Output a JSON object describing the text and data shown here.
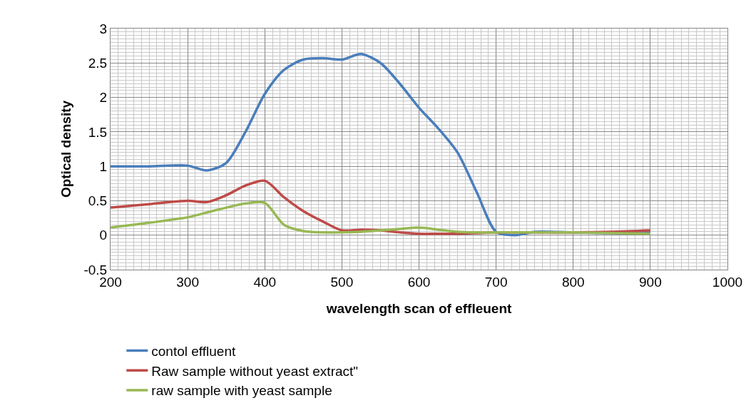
{
  "chart_data": {
    "type": "line",
    "xlabel": "wavelength scan of effleuent",
    "ylabel": "Optical density",
    "x": [
      200,
      250,
      300,
      325,
      350,
      375,
      400,
      425,
      450,
      475,
      500,
      525,
      550,
      575,
      600,
      625,
      650,
      675,
      700,
      725,
      750,
      800,
      850,
      900
    ],
    "series": [
      {
        "name": "contol effluent",
        "color": "#4a7ebb",
        "values": [
          1.0,
          1.0,
          1.01,
          0.94,
          1.05,
          1.5,
          2.05,
          2.4,
          2.55,
          2.57,
          2.55,
          2.63,
          2.5,
          2.2,
          1.85,
          1.55,
          1.2,
          0.62,
          0.05,
          0,
          0.05,
          0.04,
          0.03,
          0.03
        ]
      },
      {
        "name": "Raw sample without yeast extract\"",
        "color": "#be4b48",
        "values": [
          0.4,
          0.45,
          0.5,
          0.48,
          0.58,
          0.72,
          0.79,
          0.55,
          0.35,
          0.2,
          0.07,
          0.08,
          0.07,
          0.04,
          0.02,
          0.02,
          0.02,
          0.03,
          0.04,
          0.04,
          0.04,
          0.04,
          0.05,
          0.07
        ]
      },
      {
        "name": "raw sample with yeast sample",
        "color": "#98b954",
        "values": [
          0.11,
          0.18,
          0.26,
          0.33,
          0.4,
          0.46,
          0.47,
          0.15,
          0.06,
          0.04,
          0.04,
          0.05,
          0.07,
          0.09,
          0.11,
          0.08,
          0.05,
          0.04,
          0.04,
          0.04,
          0.04,
          0.04,
          0.03,
          0.02
        ]
      }
    ],
    "xlim": [
      200,
      1000
    ],
    "xticks": [
      200,
      300,
      400,
      500,
      600,
      700,
      800,
      900,
      1000
    ],
    "ylim": [
      -0.5,
      3
    ],
    "yticks": [
      -0.5,
      0,
      0.5,
      1,
      1.5,
      2,
      2.5,
      3
    ],
    "grid": true,
    "legend": "bottom",
    "marker": "none",
    "line_style": "solid"
  }
}
